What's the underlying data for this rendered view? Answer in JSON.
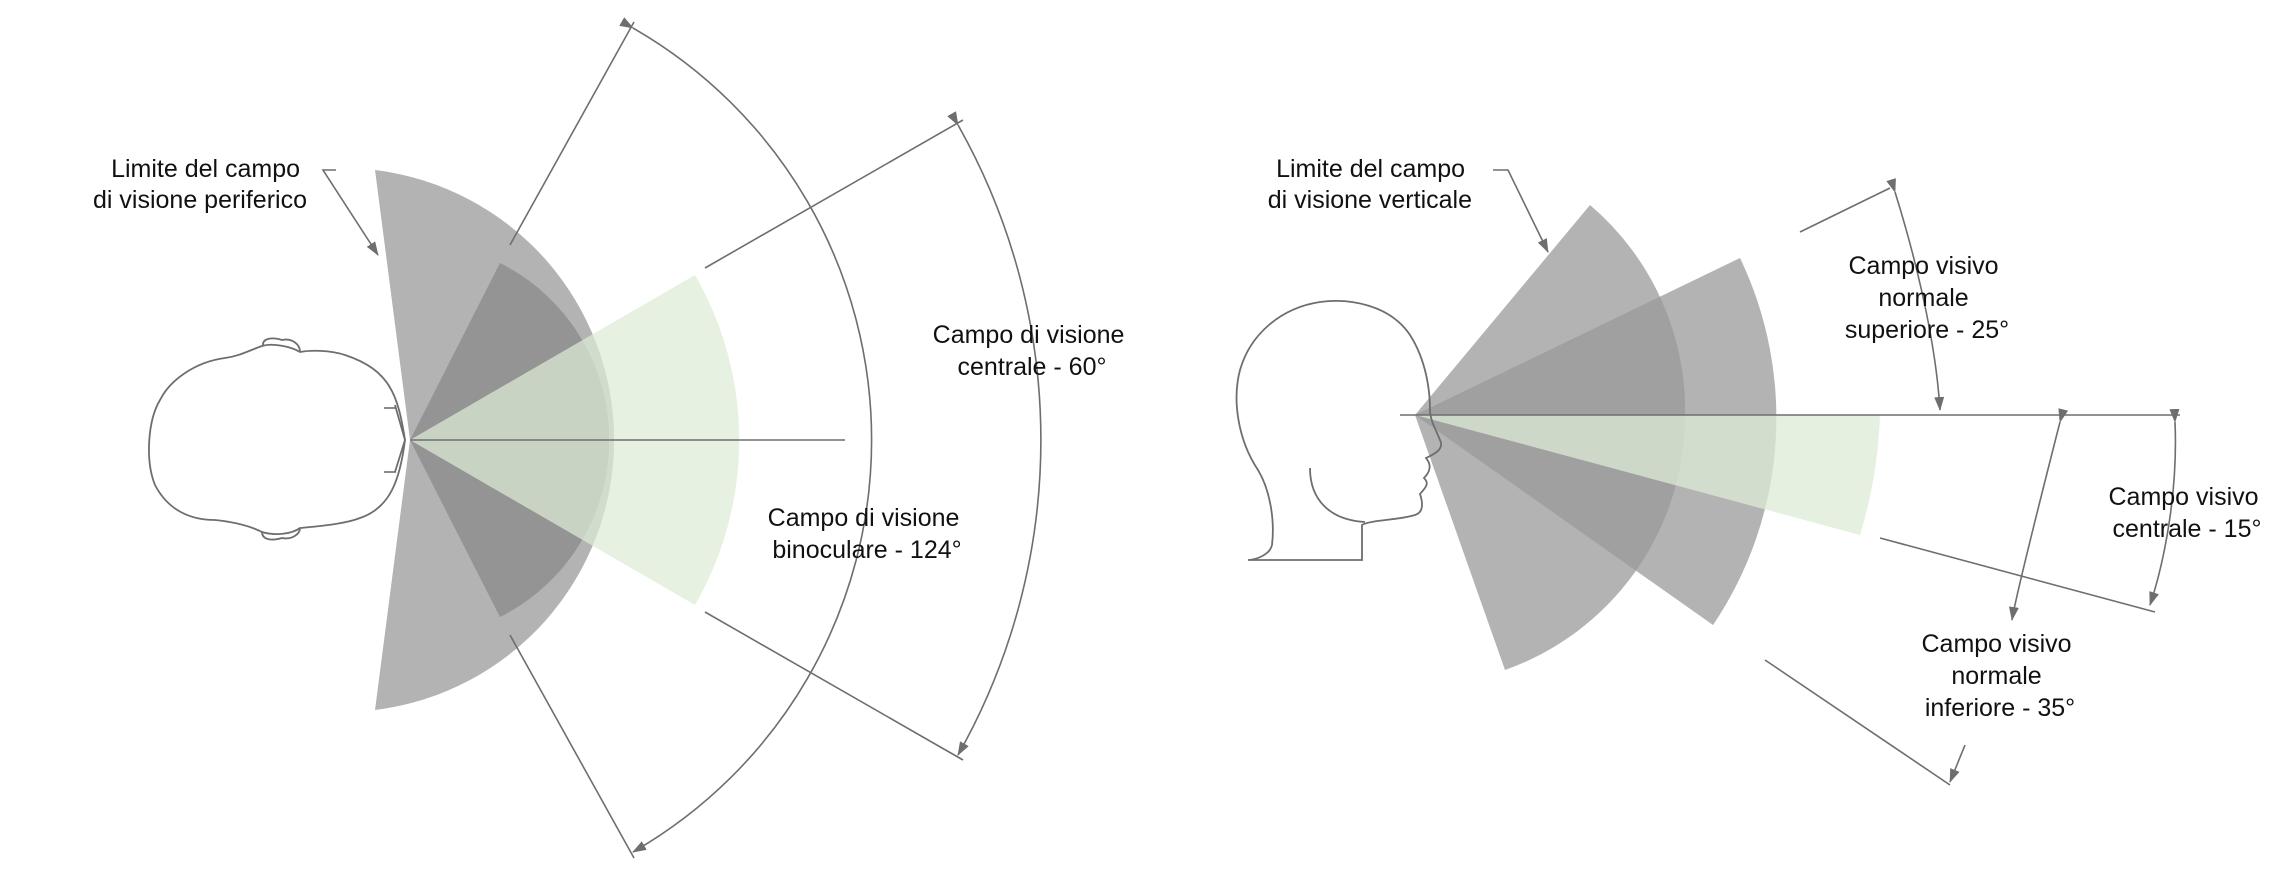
{
  "colors": {
    "outer_sector": "#b3b3b3",
    "inner_sector": "#8e8e8e",
    "central_sector": "#dcebd7",
    "line": "#6e6e6e",
    "text": "#111111"
  },
  "horizontal": {
    "label_limit_line1": "Limite del campo",
    "label_limit_line2": "di visione periferico",
    "label_central_line1": "Campo di visione",
    "label_central_line2": "centrale - 60°",
    "label_binocular_line1": "Campo di visione",
    "label_binocular_line2": "binoculare - 124°"
  },
  "vertical": {
    "label_limit_line1": "Limite del campo",
    "label_limit_line2": "di visione verticale",
    "label_upper_line1": "Campo visivo",
    "label_upper_line2": "normale",
    "label_upper_line3": "superiore - 25°",
    "label_central_line1": "Campo visivo",
    "label_central_line2": "centrale - 15°",
    "label_lower_line1": "Campo visivo",
    "label_lower_line2": "normale",
    "label_lower_line3": "inferiore - 35°"
  }
}
